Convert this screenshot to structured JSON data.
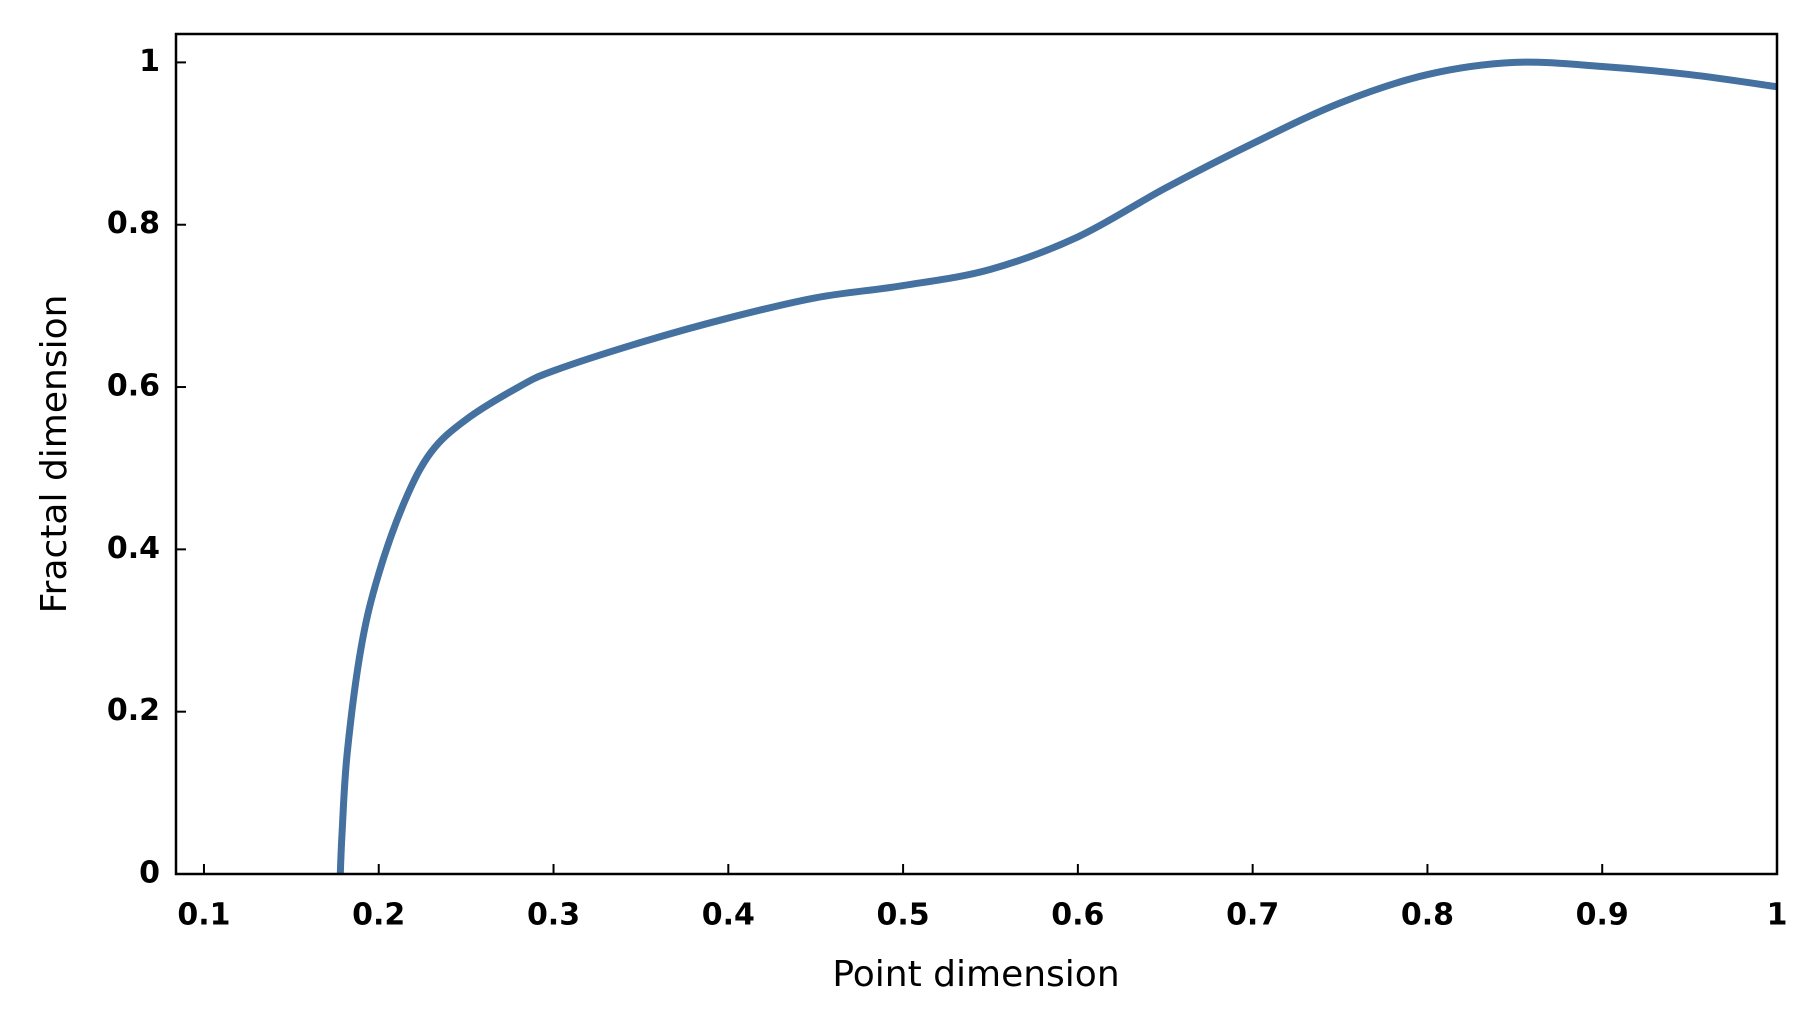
{
  "chart_data": {
    "type": "line",
    "x_label": "Point dimension",
    "y_label": "Fractal dimension",
    "x": [
      0.178,
      0.179,
      0.182,
      0.19,
      0.2,
      0.215,
      0.23,
      0.25,
      0.28,
      0.3,
      0.35,
      0.4,
      0.45,
      0.5,
      0.55,
      0.6,
      0.65,
      0.7,
      0.75,
      0.8,
      0.85,
      0.9,
      0.95,
      1.0
    ],
    "series": [
      {
        "color": "#44719f",
        "values": [
          0,
          0.05,
          0.15,
          0.28,
          0.37,
          0.46,
          0.52,
          0.56,
          0.6,
          0.62,
          0.655,
          0.685,
          0.71,
          0.725,
          0.745,
          0.785,
          0.845,
          0.9,
          0.95,
          0.985,
          1.0,
          0.995,
          0.985,
          0.97
        ]
      }
    ],
    "xlim": [
      0.084,
      1
    ],
    "ylim": [
      0,
      1.035
    ],
    "xticks": [
      0.1,
      0.2,
      0.3,
      0.4,
      0.5,
      0.6,
      0.7,
      0.8,
      0.9,
      1
    ],
    "yticks": [
      0,
      0.2,
      0.4,
      0.6,
      0.8,
      1
    ],
    "grid": false
  }
}
